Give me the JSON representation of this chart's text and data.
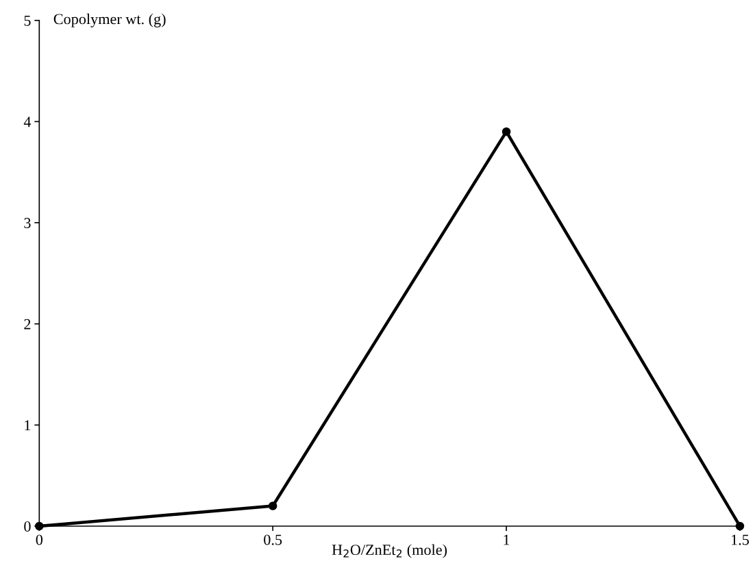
{
  "chart_data": {
    "type": "line",
    "xlabel": "H$_{2}$O/ZnEt$_{2}$ (mole)",
    "ylabel": "Copolymer wt. (g)",
    "x": [
      0,
      0.5,
      1,
      1.5
    ],
    "series": [
      {
        "color": "#000000",
        "values": [
          0,
          0.2,
          3.9,
          0
        ]
      }
    ],
    "xlim": [
      0,
      1.5
    ],
    "xticks": [
      0,
      0.5,
      1,
      1.5
    ],
    "ylim": [
      0,
      5
    ],
    "yticks": [
      0,
      1,
      2,
      3,
      4,
      5
    ],
    "marker": "circle",
    "line_style": "solid",
    "grid": false,
    "legend": false
  }
}
